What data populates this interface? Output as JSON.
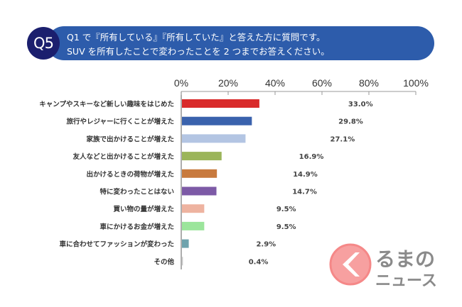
{
  "header": {
    "badge": "Q5",
    "line1": "Q1 で『所有している』『所有していた』と答えた方に質問です。",
    "line2": "SUV を所有したことで変わったことを 2 つまでお答えください。"
  },
  "chart_data": {
    "type": "bar",
    "orientation": "horizontal",
    "categories": [
      "キャンプやスキーなど新しい趣味をはじめた",
      "旅行やレジャーに行くことが増えた",
      "家族で出かけることが増えた",
      "友人などと出かけることが増えた",
      "出かけるときの荷物が増えた",
      "特に変わったことはない",
      "買い物の量が増えた",
      "車にかけるお金が増えた",
      "車に合わせてファッションが変わった",
      "その他"
    ],
    "values": [
      33.0,
      29.8,
      27.1,
      16.9,
      14.9,
      14.7,
      9.5,
      9.5,
      2.9,
      0.4
    ],
    "value_labels": [
      "33.0%",
      "29.8%",
      "27.1%",
      "16.9%",
      "14.9%",
      "14.7%",
      "9.5%",
      "9.5%",
      "2.9%",
      "0.4%"
    ],
    "colors": [
      "#d92b2b",
      "#3a62ad",
      "#b3c5e3",
      "#9bb55a",
      "#c87a3e",
      "#7d5aa6",
      "#eeb3a0",
      "#9be59b",
      "#6fa3ad",
      "#c8c8c8"
    ],
    "xticks": [
      "0%",
      "20%",
      "40%",
      "60%",
      "80%",
      "100%"
    ],
    "xlim": [
      0,
      100
    ],
    "grid": false
  },
  "logo": {
    "line1": "るまの",
    "line2": "ニュース"
  }
}
